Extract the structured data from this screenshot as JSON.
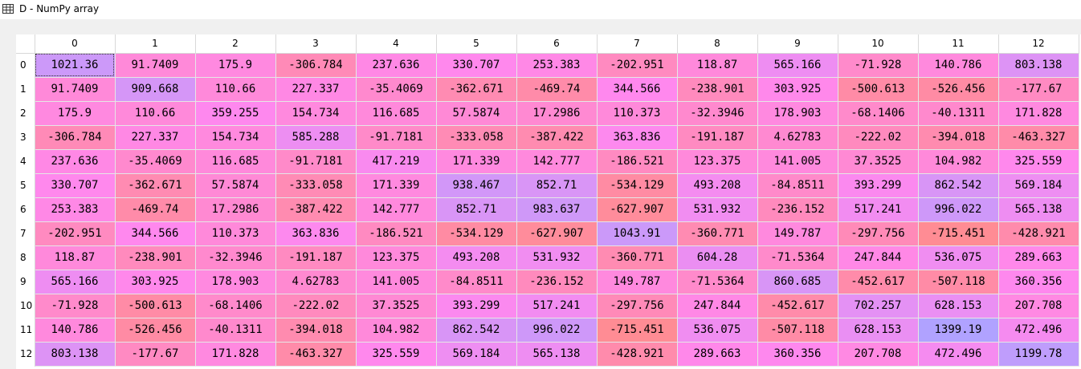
{
  "window": {
    "title": "D - NumPy array",
    "icon": "table-icon"
  },
  "grid": {
    "columns": [
      "0",
      "1",
      "2",
      "3",
      "4",
      "5",
      "6",
      "7",
      "8",
      "9",
      "10",
      "11",
      "12"
    ],
    "rows": [
      "0",
      "1",
      "2",
      "3",
      "4",
      "5",
      "6",
      "7",
      "8",
      "9",
      "10",
      "11",
      "12"
    ],
    "selected": {
      "row": 0,
      "col": 0
    },
    "colorscale": {
      "low": "#ff8c94",
      "mid": "#ff88ee",
      "high": "#b0a2ff",
      "min": -715.451,
      "max": 1399.19
    },
    "values": [
      [
        "1021.36",
        "91.7409",
        "175.9",
        "-306.784",
        "237.636",
        "330.707",
        "253.383",
        "-202.951",
        "118.87",
        "565.166",
        "-71.928",
        "140.786",
        "803.138"
      ],
      [
        "91.7409",
        "909.668",
        "110.66",
        "227.337",
        "-35.4069",
        "-362.671",
        "-469.74",
        "344.566",
        "-238.901",
        "303.925",
        "-500.613",
        "-526.456",
        "-177.67"
      ],
      [
        "175.9",
        "110.66",
        "359.255",
        "154.734",
        "116.685",
        "57.5874",
        "17.2986",
        "110.373",
        "-32.3946",
        "178.903",
        "-68.1406",
        "-40.1311",
        "171.828"
      ],
      [
        "-306.784",
        "227.337",
        "154.734",
        "585.288",
        "-91.7181",
        "-333.058",
        "-387.422",
        "363.836",
        "-191.187",
        "4.62783",
        "-222.02",
        "-394.018",
        "-463.327"
      ],
      [
        "237.636",
        "-35.4069",
        "116.685",
        "-91.7181",
        "417.219",
        "171.339",
        "142.777",
        "-186.521",
        "123.375",
        "141.005",
        "37.3525",
        "104.982",
        "325.559"
      ],
      [
        "330.707",
        "-362.671",
        "57.5874",
        "-333.058",
        "171.339",
        "938.467",
        "852.71",
        "-534.129",
        "493.208",
        "-84.8511",
        "393.299",
        "862.542",
        "569.184"
      ],
      [
        "253.383",
        "-469.74",
        "17.2986",
        "-387.422",
        "142.777",
        "852.71",
        "983.637",
        "-627.907",
        "531.932",
        "-236.152",
        "517.241",
        "996.022",
        "565.138"
      ],
      [
        "-202.951",
        "344.566",
        "110.373",
        "363.836",
        "-186.521",
        "-534.129",
        "-627.907",
        "1043.91",
        "-360.771",
        "149.787",
        "-297.756",
        "-715.451",
        "-428.921"
      ],
      [
        "118.87",
        "-238.901",
        "-32.3946",
        "-191.187",
        "123.375",
        "493.208",
        "531.932",
        "-360.771",
        "604.28",
        "-71.5364",
        "247.844",
        "536.075",
        "289.663"
      ],
      [
        "565.166",
        "303.925",
        "178.903",
        "4.62783",
        "141.005",
        "-84.8511",
        "-236.152",
        "149.787",
        "-71.5364",
        "860.685",
        "-452.617",
        "-507.118",
        "360.356"
      ],
      [
        "-71.928",
        "-500.613",
        "-68.1406",
        "-222.02",
        "37.3525",
        "393.299",
        "517.241",
        "-297.756",
        "247.844",
        "-452.617",
        "702.257",
        "628.153",
        "207.708"
      ],
      [
        "140.786",
        "-526.456",
        "-40.1311",
        "-394.018",
        "104.982",
        "862.542",
        "996.022",
        "-715.451",
        "536.075",
        "-507.118",
        "628.153",
        "1399.19",
        "472.496"
      ],
      [
        "803.138",
        "-177.67",
        "171.828",
        "-463.327",
        "325.559",
        "569.184",
        "565.138",
        "-428.921",
        "289.663",
        "360.356",
        "207.708",
        "472.496",
        "1199.78"
      ]
    ]
  }
}
